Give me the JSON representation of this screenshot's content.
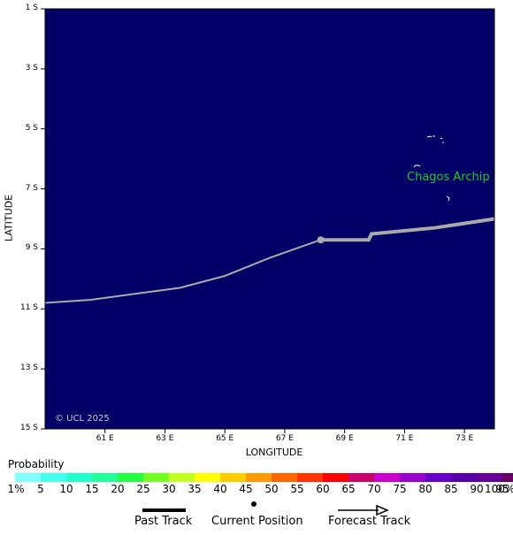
{
  "map": {
    "background_color": "#000066",
    "track_color": "#aaaaaa",
    "lat_labels": [
      "1 S",
      "3 S",
      "5 S",
      "7 S",
      "9 S",
      "11 S",
      "13 S",
      "15 S"
    ],
    "lon_labels": [
      "61 E",
      "63 E",
      "65 E",
      "67 E",
      "69 E",
      "71 E",
      "73 E"
    ],
    "lat_axis_title": "LATITUDE",
    "lon_axis_title": "LONGITUDE",
    "credit": "© UCL 2025",
    "place_label": "Chagos Archip",
    "place_label_color": "#22cc22",
    "past_track": [
      [
        59.0,
        -10.8
      ],
      [
        60.5,
        -10.7
      ],
      [
        62.0,
        -10.5
      ],
      [
        63.5,
        -10.3
      ],
      [
        65.0,
        -9.9
      ],
      [
        66.5,
        -9.3
      ],
      [
        68.2,
        -8.7
      ]
    ],
    "current_position": [
      68.2,
      -8.7
    ],
    "forecast_track": [
      [
        68.2,
        -8.7
      ],
      [
        69.8,
        -8.7
      ],
      [
        69.9,
        -8.5
      ],
      [
        72.0,
        -8.3
      ],
      [
        74.0,
        -8.0
      ]
    ]
  },
  "legend": {
    "probability_title": "Probability",
    "colorbar_colors": [
      "#80ffff",
      "#40ffee",
      "#20ffcc",
      "#20ff99",
      "#20ff40",
      "#70ff20",
      "#c0ff20",
      "#ffff00",
      "#ffcc00",
      "#ff9900",
      "#ff6600",
      "#ff3300",
      "#ff0000",
      "#cc0066",
      "#cc00cc",
      "#9900cc",
      "#6600cc",
      "#5500aa",
      "#660099",
      "#660066"
    ],
    "colorbar_labels": [
      "1%",
      "5",
      "10",
      "15",
      "20",
      "25",
      "30",
      "35",
      "40",
      "45",
      "50",
      "55",
      "60",
      "65",
      "70",
      "75",
      "80",
      "85",
      "90",
      "95",
      "100%"
    ],
    "past_track_label": "Past Track",
    "current_position_label": "Current Position",
    "forecast_track_label": "Forecast Track"
  }
}
